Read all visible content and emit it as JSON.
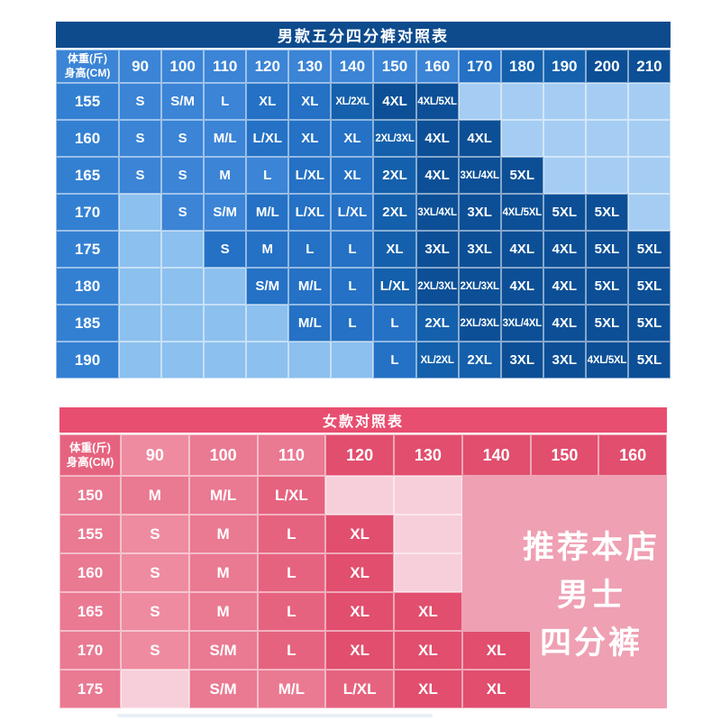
{
  "style": {
    "page_bg": "#ffffff",
    "grid_line": "rgba(255,255,255,0.5)",
    "text_color": "#ffffff",
    "bottom_hint_color": "#e9eff7"
  },
  "chart_data": [
    {
      "type": "table",
      "title": "男款五分四分裤对照表",
      "col_axis_label": "体重(斤)",
      "row_axis_label": "身高(CM)",
      "columns": [
        "90",
        "100",
        "110",
        "120",
        "130",
        "140",
        "150",
        "160",
        "170",
        "180",
        "190",
        "200",
        "210"
      ],
      "header_shades": [
        "1",
        "1",
        "1",
        "1",
        "1",
        "1",
        "1",
        "1",
        "2",
        "3",
        "3",
        "4",
        "4"
      ],
      "corner_shade": "1",
      "row_label_shade": "L",
      "palette": {
        "title": "#0d4b8d",
        "L": "#3380d2",
        "1": "#3b84d6",
        "2": "#2471c5",
        "3": "#1460ac",
        "4": "#0c4f96",
        "0": "#a5cdf3",
        "9": "#8cc0ee"
      },
      "rows": [
        {
          "height": "155",
          "sizes": [
            "S",
            "S/M",
            "L",
            "XL",
            "XL",
            "XL/2XL",
            "4XL",
            "4XL/5XL",
            "",
            "",
            "",
            "",
            ""
          ],
          "shades": [
            "1",
            "1",
            "1",
            "2",
            "2",
            "3",
            "4",
            "4",
            "0",
            "0",
            "0",
            "0",
            "0"
          ]
        },
        {
          "height": "160",
          "sizes": [
            "S",
            "S",
            "M/L",
            "L/XL",
            "XL",
            "XL",
            "2XL/3XL",
            "4XL",
            "4XL",
            "",
            "",
            "",
            ""
          ],
          "shades": [
            "1",
            "1",
            "1",
            "2",
            "2",
            "2",
            "3",
            "4",
            "4",
            "0",
            "0",
            "0",
            "0"
          ]
        },
        {
          "height": "165",
          "sizes": [
            "S",
            "S",
            "M",
            "L",
            "L/XL",
            "XL",
            "2XL",
            "4XL",
            "3XL/4XL",
            "5XL",
            "",
            "",
            ""
          ],
          "shades": [
            "1",
            "1",
            "1",
            "1",
            "2",
            "2",
            "3",
            "4",
            "4",
            "4",
            "0",
            "0",
            "0"
          ]
        },
        {
          "height": "170",
          "sizes": [
            "",
            "S",
            "S/M",
            "M/L",
            "L/XL",
            "L/XL",
            "2XL",
            "3XL/4XL",
            "3XL",
            "4XL/5XL",
            "5XL",
            "5XL",
            ""
          ],
          "shades": [
            "9",
            "1",
            "1",
            "2",
            "2",
            "2",
            "3",
            "4",
            "4",
            "4",
            "4",
            "4",
            "0"
          ]
        },
        {
          "height": "175",
          "sizes": [
            "",
            "",
            "S",
            "M",
            "L",
            "L",
            "XL",
            "3XL",
            "3XL",
            "4XL",
            "4XL",
            "5XL",
            "5XL"
          ],
          "shades": [
            "9",
            "9",
            "2",
            "2",
            "2",
            "2",
            "3",
            "4",
            "4",
            "4",
            "4",
            "4",
            "4"
          ]
        },
        {
          "height": "180",
          "sizes": [
            "",
            "",
            "",
            "S/M",
            "M/L",
            "L",
            "L/XL",
            "2XL/3XL",
            "2XL/3XL",
            "4XL",
            "4XL",
            "5XL",
            "5XL"
          ],
          "shades": [
            "9",
            "9",
            "9",
            "2",
            "2",
            "2",
            "3",
            "4",
            "4",
            "4",
            "4",
            "4",
            "4"
          ]
        },
        {
          "height": "185",
          "sizes": [
            "",
            "",
            "",
            "",
            "M/L",
            "L",
            "L",
            "2XL",
            "2XL/3XL",
            "3XL/4XL",
            "4XL",
            "5XL",
            "5XL"
          ],
          "shades": [
            "9",
            "9",
            "9",
            "9",
            "2",
            "2",
            "2",
            "3",
            "4",
            "4",
            "4",
            "4",
            "4"
          ]
        },
        {
          "height": "190",
          "sizes": [
            "",
            "",
            "",
            "",
            "",
            "",
            "L",
            "XL/2XL",
            "2XL",
            "3XL",
            "3XL",
            "4XL/5XL",
            "5XL"
          ],
          "shades": [
            "9",
            "9",
            "9",
            "9",
            "9",
            "9",
            "2",
            "3",
            "3",
            "4",
            "4",
            "4",
            "4"
          ]
        }
      ]
    },
    {
      "type": "table",
      "title": "女款对照表",
      "col_axis_label": "体重(斤)",
      "row_axis_label": "身高(CM)",
      "columns": [
        "90",
        "100",
        "110",
        "120",
        "130",
        "140",
        "150",
        "160"
      ],
      "header_shades": [
        "1",
        "2",
        "2",
        "4",
        "4",
        "4",
        "4",
        "4"
      ],
      "corner_shade": "3",
      "row_label_shade": "L",
      "palette": {
        "title": "#e84e70",
        "L": "#ea7992",
        "1": "#ee8ba0",
        "2": "#ea7992",
        "3": "#e6637f",
        "4": "#e14e6e",
        "0": "#f7cfdb",
        "9": "#f7cfdb",
        "R": "#efa0b3"
      },
      "rows": [
        {
          "height": "150",
          "sizes": [
            "M",
            "M/L",
            "L/XL",
            "",
            "",
            "",
            "",
            ""
          ],
          "shades": [
            "2",
            "2",
            "3",
            "0",
            "0",
            "R",
            "R",
            "R"
          ]
        },
        {
          "height": "155",
          "sizes": [
            "S",
            "M",
            "L",
            "XL",
            "",
            "",
            "",
            ""
          ],
          "shades": [
            "1",
            "2",
            "3",
            "4",
            "0",
            "R",
            "R",
            "R"
          ]
        },
        {
          "height": "160",
          "sizes": [
            "S",
            "M",
            "L",
            "XL",
            "",
            "",
            "",
            ""
          ],
          "shades": [
            "1",
            "2",
            "3",
            "4",
            "0",
            "R",
            "R",
            "R"
          ]
        },
        {
          "height": "165",
          "sizes": [
            "S",
            "M",
            "L",
            "XL",
            "XL",
            "",
            "",
            ""
          ],
          "shades": [
            "1",
            "2",
            "3",
            "4",
            "4",
            "R",
            "R",
            "R"
          ]
        },
        {
          "height": "170",
          "sizes": [
            "S",
            "S/M",
            "L",
            "XL",
            "XL",
            "XL",
            "",
            ""
          ],
          "shades": [
            "1",
            "2",
            "3",
            "4",
            "4",
            "4",
            "R",
            "R"
          ]
        },
        {
          "height": "175",
          "sizes": [
            "",
            "S/M",
            "M/L",
            "L/XL",
            "XL",
            "XL",
            "",
            ""
          ],
          "shades": [
            "0",
            "2",
            "2",
            "3",
            "4",
            "4",
            "R",
            "R"
          ]
        }
      ],
      "annotation": [
        "推荐本店",
        "男士",
        "四分裤"
      ]
    }
  ]
}
